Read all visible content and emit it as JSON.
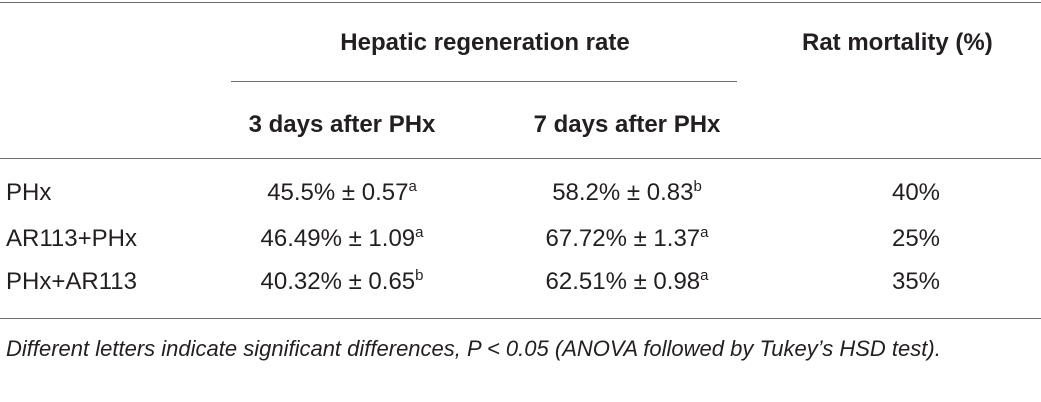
{
  "header": {
    "group_label": "Hepatic regeneration rate",
    "mortality_label": "Rat mortality (%)",
    "col_3d": "3 days after PHx",
    "col_7d": "7 days after PHx"
  },
  "rows": [
    {
      "group": "PHx",
      "day3": "45.5% ± 0.57",
      "day3_sup": "a",
      "day7": "58.2% ± 0.83",
      "day7_sup": "b",
      "mortality": "40%"
    },
    {
      "group": "AR113+PHx",
      "day3": "46.49% ± 1.09",
      "day3_sup": "a",
      "day7": "67.72% ± 1.37",
      "day7_sup": "a",
      "mortality": "25%"
    },
    {
      "group": "PHx+AR113",
      "day3": "40.32% ± 0.65",
      "day3_sup": "b",
      "day7": "62.51% ± 0.98",
      "day7_sup": "a",
      "mortality": "35%"
    }
  ],
  "footnote": "Different letters indicate significant differences, P < 0.05 (ANOVA followed by Tukey’s HSD test)."
}
